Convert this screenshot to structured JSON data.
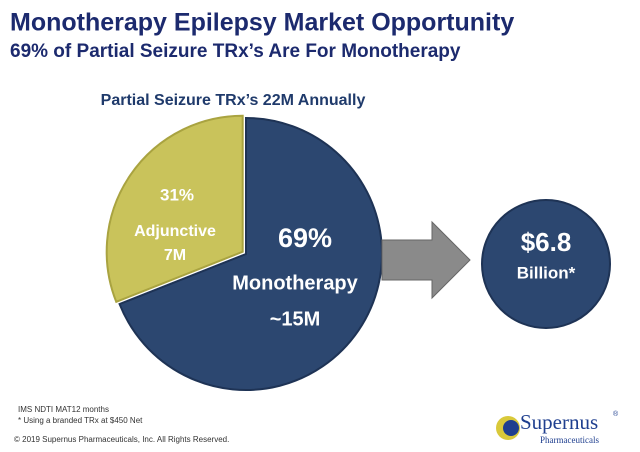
{
  "title": "Monotherapy Epilepsy Market Opportunity",
  "subtitle": "69% of Partial Seizure TRx’s Are For Monotherapy",
  "chart_data": {
    "type": "pie",
    "title": "Partial Seizure TRx’s 22M Annually",
    "categories": [
      "Adjunctive",
      "Monotherapy"
    ],
    "values": [
      31,
      69
    ],
    "value_labels": [
      "31%",
      "69%"
    ],
    "volumes": [
      "7M",
      "~15M"
    ],
    "colors": [
      "#c9c35b",
      "#2c4770"
    ]
  },
  "callout": {
    "value": "$6.8",
    "unit": "Billion*"
  },
  "footnotes": [
    "IMS NDTI MAT12 months",
    "* Using a branded TRx at $450 Net"
  ],
  "copyright": "© 2019 Supernus Pharmaceuticals, Inc. All Rights Reserved.",
  "logo": {
    "name": "Supernus",
    "mark": "®",
    "tagline": "Pharmaceuticals"
  }
}
